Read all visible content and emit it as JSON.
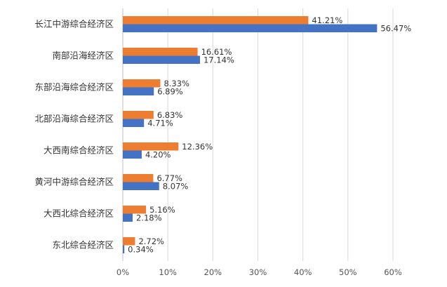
{
  "chart_data": {
    "type": "bar",
    "orientation": "horizontal",
    "categories": [
      "长江中游综合经济区",
      "南部沿海经济区",
      "东部沿海综合经济区",
      "北部沿海综合经济区",
      "大西南综合经济区",
      "黄河中游综合经济区",
      "大西北综合经济区",
      "东北综合经济区"
    ],
    "series": [
      {
        "color": "#ED7D31",
        "values": [
          41.21,
          16.61,
          8.33,
          6.83,
          12.36,
          6.77,
          5.16,
          2.72
        ],
        "labels": [
          "41.21%",
          "16.61%",
          "8.33%",
          "6.83%",
          "12.36%",
          "6.77%",
          "5.16%",
          "2.72%"
        ]
      },
      {
        "color": "#4472C4",
        "values": [
          56.47,
          17.14,
          6.89,
          4.71,
          4.2,
          8.07,
          2.18,
          0.34
        ],
        "labels": [
          "56.47%",
          "17.14%",
          "6.89%",
          "4.71%",
          "4.20%",
          "8.07%",
          "2.18%",
          "0.34%"
        ]
      }
    ],
    "xlim": [
      0,
      60
    ],
    "xticks": [
      "0%",
      "10%",
      "20%",
      "30%",
      "40%",
      "50%",
      "60%"
    ],
    "grid": true,
    "legend": "none"
  }
}
